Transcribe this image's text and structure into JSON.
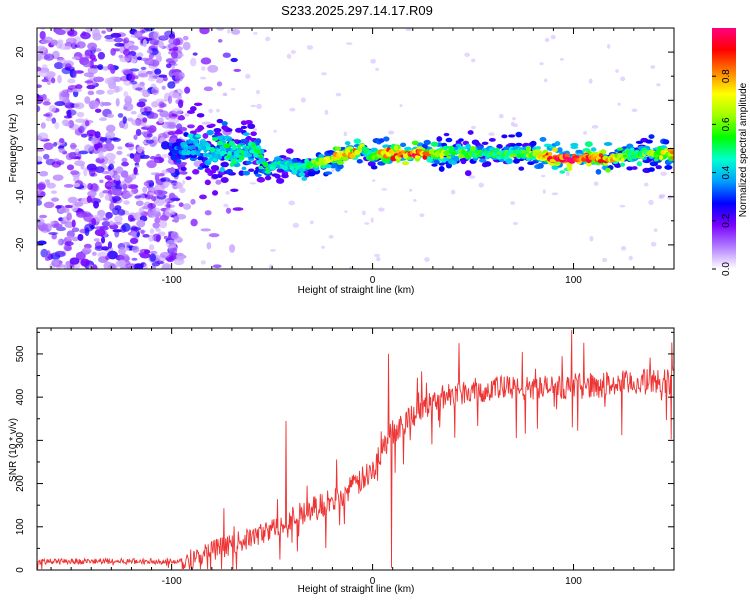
{
  "title": "S233.2025.297.14.17.R09",
  "chart_data": [
    {
      "type": "heatmap",
      "xlabel": "Height of straight line (km)",
      "ylabel": "Frequency (Hz)",
      "xlim": [
        -167,
        150
      ],
      "ylim": [
        -25,
        25
      ],
      "xticks": [
        -100,
        0,
        100
      ],
      "xtick_labels": [
        "-100",
        "0",
        "100"
      ],
      "yticks": [
        -20,
        -10,
        0,
        10,
        20
      ],
      "ytick_labels": [
        "-20",
        "-10",
        "0",
        "10",
        "20"
      ],
      "ridge": {
        "x": [
          -100,
          -90,
          -80,
          -70,
          -60,
          -52,
          -45,
          -35,
          -30,
          -20,
          -10,
          -5,
          0,
          5,
          10,
          20,
          40,
          60,
          80,
          90,
          100,
          110,
          120,
          130,
          140,
          150
        ],
        "y": [
          -1,
          1,
          0,
          -1,
          0,
          -4,
          -3,
          -4,
          -3,
          -2,
          -1,
          0,
          -2,
          -1,
          -1,
          -1,
          -1,
          -1,
          -1,
          -2,
          -2,
          -2,
          -2,
          -1,
          -1,
          -1
        ],
        "amplitude": [
          0.3,
          0.4,
          0.45,
          0.5,
          0.45,
          0.5,
          0.45,
          0.5,
          0.55,
          0.7,
          0.8,
          0.6,
          0.5,
          0.8,
          0.8,
          0.9,
          0.55,
          0.5,
          0.6,
          0.95,
          0.95,
          0.95,
          0.7,
          0.55,
          0.6,
          0.75
        ]
      },
      "noise_region_x": [
        -167,
        -95
      ],
      "colorbar": {
        "label": "Normalized spectral amplitude",
        "range": [
          0,
          1
        ],
        "ticks": [
          0.0,
          0.2,
          0.4,
          0.6,
          0.8
        ],
        "tick_labels": [
          "0.0",
          "0.2",
          "0.4",
          "0.6",
          "0.8"
        ],
        "colors": [
          "#ffffff",
          "#b27fff",
          "#7a00ff",
          "#0000ff",
          "#00a0ff",
          "#00ffd0",
          "#00ff00",
          "#a0ff00",
          "#ffff00",
          "#ff8000",
          "#ff0000",
          "#ff0080"
        ]
      }
    },
    {
      "type": "line",
      "xlabel": "Height of straight line (km)",
      "ylabel": "SNR (10 * v/v)",
      "xlim": [
        -167,
        150
      ],
      "ylim": [
        0,
        560
      ],
      "xticks": [
        -100,
        0,
        100
      ],
      "xtick_labels": [
        "-100",
        "0",
        "100"
      ],
      "yticks": [
        0,
        100,
        200,
        300,
        400,
        500
      ],
      "ytick_labels": [
        "0",
        "100",
        "200",
        "300",
        "400",
        "500"
      ],
      "color": "#ee3333",
      "trend": {
        "x": [
          -167,
          -100,
          -90,
          -80,
          -70,
          -60,
          -50,
          -40,
          -30,
          -20,
          -10,
          0,
          5,
          10,
          20,
          30,
          40,
          60,
          80,
          100,
          120,
          150
        ],
        "y": [
          20,
          20,
          25,
          45,
          60,
          75,
          95,
          120,
          140,
          160,
          190,
          230,
          280,
          320,
          360,
          390,
          410,
          420,
          420,
          425,
          430,
          440
        ]
      },
      "spikes": [
        {
          "x": 8,
          "y": 500
        },
        {
          "x": 9.5,
          "y": 5
        },
        {
          "x": -43,
          "y": 345
        },
        {
          "x": 99,
          "y": 555
        }
      ]
    }
  ]
}
